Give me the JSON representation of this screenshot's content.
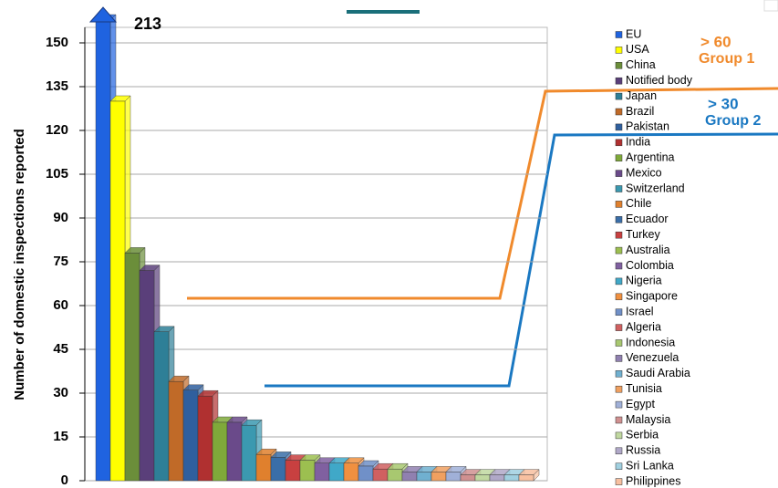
{
  "chart_data": {
    "type": "bar",
    "y_label": "Number of domestic inspections reported",
    "categories": [
      "EU",
      "USA",
      "China",
      "Notified body",
      "Japan",
      "Brazil",
      "Pakistan",
      "India",
      "Argentina",
      "Mexico",
      "Switzerland",
      "Chile",
      "Ecuador",
      "Turkey",
      "Australia",
      "Colombia",
      "Nigeria",
      "Singapore",
      "Israel",
      "Algeria",
      "Indonesia",
      "Venezuela",
      "Saudi Arabia",
      "Tunisia",
      "Egypt",
      "Malaysia",
      "Serbia",
      "Russia",
      "Sri Lanka",
      "Philippines"
    ],
    "values": [
      213,
      130,
      78,
      72,
      51,
      34,
      31,
      29,
      20,
      20,
      19,
      9,
      8,
      7,
      7,
      6,
      6,
      6,
      5,
      4,
      4,
      3,
      3,
      3,
      3,
      2,
      2,
      2,
      2,
      2
    ],
    "value_labels": [
      "213",
      null,
      null,
      null,
      null,
      null,
      null,
      null,
      null,
      null,
      null,
      null,
      null,
      null,
      null,
      null,
      null,
      null,
      null,
      null,
      null,
      null,
      null,
      null,
      null,
      null,
      null,
      null,
      null,
      null
    ],
    "colors": [
      "#1f63e0",
      "#ffff00",
      "#6b8e3a",
      "#5a3f7a",
      "#2e7f97",
      "#c06a28",
      "#2f5f9e",
      "#b03030",
      "#7fa93a",
      "#6a4a8a",
      "#3b99b0",
      "#e0802d",
      "#3a6ea8",
      "#c84040",
      "#9cbf50",
      "#8060a0",
      "#40a8c8",
      "#f09040",
      "#7090c8",
      "#d06060",
      "#a8c870",
      "#9080b0",
      "#70b0d0",
      "#f0a060",
      "#a0b0d8",
      "#d09090",
      "#c0d8a0",
      "#b0a8c8",
      "#a0d0e0",
      "#f8c0a0"
    ],
    "ylim": [
      0,
      150
    ],
    "yticks": [
      0,
      15,
      30,
      45,
      60,
      75,
      90,
      105,
      120,
      135,
      150
    ],
    "grid": true,
    "annotations": [
      "> 60",
      "Group 1",
      "> 30",
      "Group 2"
    ]
  }
}
